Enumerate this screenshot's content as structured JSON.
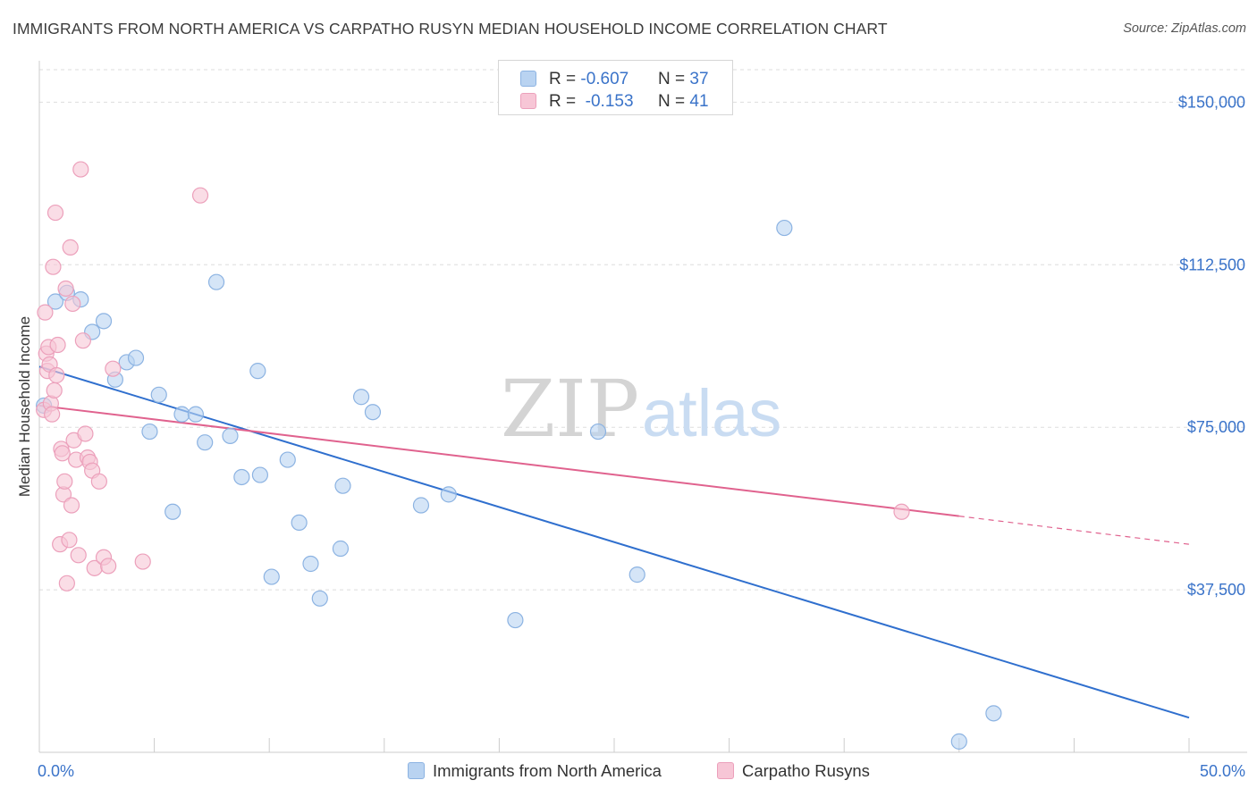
{
  "header": {
    "title": "IMMIGRANTS FROM NORTH AMERICA VS CARPATHO RUSYN MEDIAN HOUSEHOLD INCOME CORRELATION CHART",
    "source": "Source: ZipAtlas.com"
  },
  "watermark": {
    "zip": "ZIP",
    "atlas": "atlas"
  },
  "legend_top": [
    {
      "r_label": "R = ",
      "r_value": "-0.607",
      "n_label": "N = ",
      "n_value": "37"
    },
    {
      "r_label": "R = ",
      "r_value": " -0.153",
      "n_label": "N = ",
      "n_value": "41"
    }
  ],
  "colors": {
    "blue_fill": "#b9d3f1",
    "blue_stroke": "#8cb3e2",
    "blue_line": "#2f6fce",
    "pink_fill": "#f7c6d6",
    "pink_stroke": "#eca0bb",
    "pink_line": "#e0628e",
    "tick_text": "#3a73c9",
    "grid": "#dddddd"
  },
  "chart_data": {
    "type": "scatter",
    "title": "IMMIGRANTS FROM NORTH AMERICA VS CARPATHO RUSYN MEDIAN HOUSEHOLD INCOME CORRELATION CHART",
    "xlabel": "",
    "ylabel": "Median Household Income",
    "xlim": [
      0,
      50
    ],
    "ylim": [
      0,
      157500
    ],
    "x_tick_labels": [
      "0.0%",
      "50.0%"
    ],
    "y_ticks": [
      37500,
      75000,
      112500,
      150000
    ],
    "y_tick_labels": [
      "$37,500",
      "$75,000",
      "$112,500",
      "$150,000"
    ],
    "grid": true,
    "legend_placement": "bottom",
    "series": [
      {
        "name": "Immigrants from North America",
        "color": "#b9d3f1",
        "points": [
          [
            0.2,
            80000
          ],
          [
            0.7,
            104000
          ],
          [
            1.2,
            106000
          ],
          [
            1.8,
            104500
          ],
          [
            2.3,
            97000
          ],
          [
            2.8,
            99500
          ],
          [
            3.3,
            86000
          ],
          [
            3.8,
            90000
          ],
          [
            4.2,
            91000
          ],
          [
            4.8,
            74000
          ],
          [
            5.2,
            82500
          ],
          [
            5.8,
            55500
          ],
          [
            6.2,
            78000
          ],
          [
            6.8,
            78000
          ],
          [
            7.2,
            71500
          ],
          [
            7.7,
            108500
          ],
          [
            8.3,
            73000
          ],
          [
            8.8,
            63500
          ],
          [
            9.5,
            88000
          ],
          [
            9.6,
            64000
          ],
          [
            10.1,
            40500
          ],
          [
            10.8,
            67500
          ],
          [
            11.3,
            53000
          ],
          [
            11.8,
            43500
          ],
          [
            12.2,
            35500
          ],
          [
            13.1,
            47000
          ],
          [
            13.2,
            61500
          ],
          [
            14.0,
            82000
          ],
          [
            14.5,
            78500
          ],
          [
            16.6,
            57000
          ],
          [
            17.8,
            59500
          ],
          [
            20.7,
            30500
          ],
          [
            24.3,
            74000
          ],
          [
            26.0,
            41000
          ],
          [
            32.4,
            121000
          ],
          [
            41.5,
            9000
          ],
          [
            40.0,
            2500
          ]
        ],
        "trend": {
          "x": [
            0.0,
            50.0
          ],
          "y": [
            89000,
            8000
          ]
        }
      },
      {
        "name": "Carpatho Rusyns",
        "color": "#f7c6d6",
        "points": [
          [
            0.2,
            79000
          ],
          [
            0.25,
            101500
          ],
          [
            0.3,
            92000
          ],
          [
            0.35,
            88000
          ],
          [
            0.4,
            93500
          ],
          [
            0.45,
            89500
          ],
          [
            0.5,
            80500
          ],
          [
            0.55,
            78000
          ],
          [
            0.6,
            112000
          ],
          [
            0.65,
            83500
          ],
          [
            0.7,
            124500
          ],
          [
            0.75,
            87000
          ],
          [
            0.8,
            94000
          ],
          [
            0.9,
            48000
          ],
          [
            0.95,
            70000
          ],
          [
            1.0,
            69000
          ],
          [
            1.05,
            59500
          ],
          [
            1.1,
            62500
          ],
          [
            1.15,
            107000
          ],
          [
            1.2,
            39000
          ],
          [
            1.3,
            49000
          ],
          [
            1.35,
            116500
          ],
          [
            1.4,
            57000
          ],
          [
            1.45,
            103500
          ],
          [
            1.5,
            72000
          ],
          [
            1.6,
            67500
          ],
          [
            1.7,
            45500
          ],
          [
            1.8,
            134500
          ],
          [
            1.9,
            95000
          ],
          [
            2.0,
            73500
          ],
          [
            2.1,
            68000
          ],
          [
            2.2,
            67000
          ],
          [
            2.3,
            65000
          ],
          [
            2.4,
            42500
          ],
          [
            2.6,
            62500
          ],
          [
            2.8,
            45000
          ],
          [
            3.0,
            43000
          ],
          [
            3.2,
            88500
          ],
          [
            4.5,
            44000
          ],
          [
            7.0,
            128500
          ],
          [
            37.5,
            55500
          ]
        ],
        "trend": {
          "x": [
            0.0,
            40.0
          ],
          "y": [
            80000,
            54500
          ]
        },
        "trend_dashed": {
          "x": [
            40.0,
            50.0
          ],
          "y": [
            54500,
            48000
          ]
        }
      }
    ]
  },
  "legend_bottom": [
    {
      "label": "Immigrants from North America"
    },
    {
      "label": "Carpatho Rusyns"
    }
  ]
}
